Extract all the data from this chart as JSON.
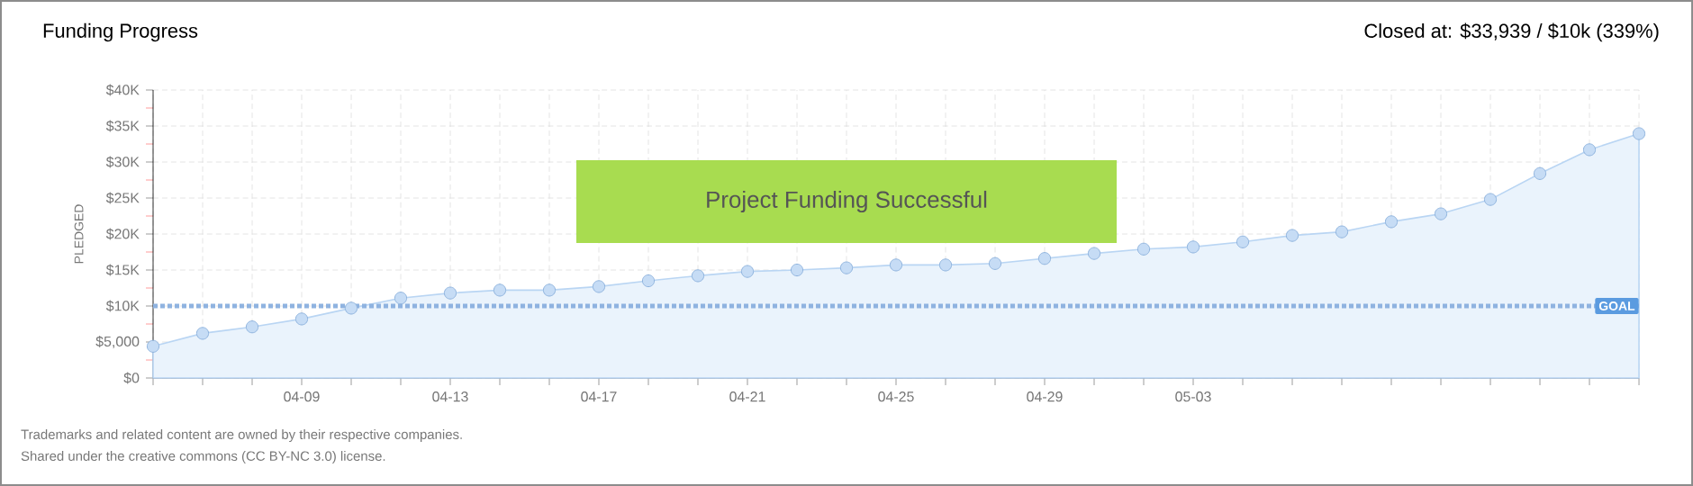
{
  "chart_data": {
    "type": "area",
    "title": "Funding Progress",
    "subtitle": "Closed at: $33,939 / $10k (339%)",
    "ylabel": "PLEDGED",
    "categories": [
      null,
      null,
      null,
      "04-09",
      null,
      null,
      "04-13",
      null,
      null,
      "04-17",
      null,
      null,
      "04-21",
      null,
      null,
      "04-25",
      null,
      null,
      "04-29",
      null,
      null,
      "05-03",
      null,
      null,
      null,
      null,
      null,
      null,
      null,
      null,
      null
    ],
    "series": [
      {
        "color": "#b9d5f3",
        "values": [
          4400,
          6200,
          7100,
          8200,
          9700,
          11100,
          11800,
          12200,
          12200,
          12700,
          13500,
          14200,
          14800,
          15000,
          15300,
          15700,
          15700,
          15900,
          16600,
          17300,
          17900,
          18200,
          18900,
          19800,
          20300,
          21700,
          22800,
          24800,
          28400,
          31700,
          33939
        ]
      }
    ],
    "ylim": [
      0,
      40000
    ],
    "yticks": [
      {
        "value": 0,
        "label": "$0"
      },
      {
        "value": 5000,
        "label": "$5,000"
      },
      {
        "value": 10000,
        "label": "$10K"
      },
      {
        "value": 15000,
        "label": "$15K"
      },
      {
        "value": 20000,
        "label": "$20K"
      },
      {
        "value": 25000,
        "label": "$25K"
      },
      {
        "value": 30000,
        "label": "$30K"
      },
      {
        "value": 35000,
        "label": "$35K"
      },
      {
        "value": 40000,
        "label": "$40K"
      }
    ],
    "ref_lines": [
      {
        "axis": "y",
        "value": 10000,
        "label": "GOAL",
        "color": "#8fb3e0",
        "line_style": "dotted"
      }
    ],
    "annotations": [
      "Project Funding Successful",
      "Trademarks and related content are owned by their respective companies.",
      "Shared under the creative commons (CC BY-NC 3.0) license."
    ],
    "grid": true,
    "marker": "circle"
  }
}
